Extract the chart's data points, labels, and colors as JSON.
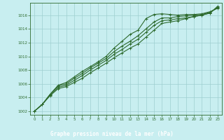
{
  "xlabel": "Graphe pression niveau de la mer (hPa)",
  "bg_color": "#c8eef0",
  "plot_bg": "#c8eef0",
  "line_color": "#2d6a2d",
  "grid_color": "#9ecfcf",
  "label_bg": "#2d6a2d",
  "label_text": "#ffffff",
  "ylim": [
    1001.5,
    1017.8
  ],
  "xlim": [
    -0.5,
    23.5
  ],
  "yticks": [
    1002,
    1004,
    1006,
    1008,
    1010,
    1012,
    1014,
    1016
  ],
  "xticks": [
    0,
    1,
    2,
    3,
    4,
    5,
    6,
    7,
    8,
    9,
    10,
    11,
    12,
    13,
    14,
    15,
    16,
    17,
    18,
    19,
    20,
    21,
    22,
    23
  ],
  "series": [
    [
      1002.0,
      1003.0,
      1004.5,
      1005.8,
      1006.2,
      1007.0,
      1007.8,
      1008.5,
      1009.2,
      1010.0,
      1011.2,
      1012.2,
      1013.2,
      1013.8,
      1015.5,
      1016.1,
      1016.2,
      1016.1,
      1016.0,
      1016.1,
      1016.1,
      1016.2,
      1016.5,
      1017.0
    ],
    [
      1002.0,
      1003.0,
      1004.5,
      1005.7,
      1006.0,
      1006.8,
      1007.5,
      1008.3,
      1009.0,
      1009.7,
      1010.7,
      1011.5,
      1012.2,
      1013.0,
      1014.0,
      1015.0,
      1015.6,
      1015.6,
      1015.8,
      1015.9,
      1016.0,
      1016.1,
      1016.4,
      1017.1
    ],
    [
      1002.0,
      1003.0,
      1004.4,
      1005.5,
      1005.8,
      1006.5,
      1007.2,
      1008.0,
      1008.7,
      1009.4,
      1010.3,
      1011.0,
      1011.8,
      1012.5,
      1013.5,
      1014.5,
      1015.2,
      1015.3,
      1015.5,
      1015.6,
      1015.8,
      1016.0,
      1016.3,
      1017.2
    ],
    [
      1002.0,
      1003.0,
      1004.3,
      1005.3,
      1005.6,
      1006.2,
      1006.8,
      1007.6,
      1008.3,
      1009.0,
      1009.8,
      1010.5,
      1011.2,
      1011.8,
      1012.8,
      1013.8,
      1014.8,
      1015.0,
      1015.2,
      1015.5,
      1015.8,
      1016.0,
      1016.3,
      1017.3
    ]
  ]
}
